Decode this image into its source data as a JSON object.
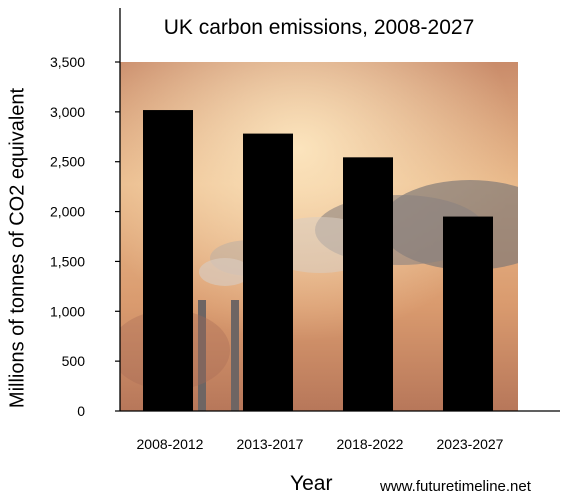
{
  "chart_data": {
    "type": "bar",
    "title": "UK carbon emissions, 2008-2027",
    "xlabel": "Year",
    "ylabel": "Millions of tonnes of CO2 equivalent",
    "categories": [
      "2008-2012",
      "2013-2017",
      "2018-2022",
      "2023-2027"
    ],
    "values": [
      3018,
      2782,
      2544,
      1950
    ],
    "ylim": [
      0,
      3500
    ],
    "yticks": [
      0,
      500,
      1000,
      1500,
      2000,
      2500,
      3000,
      3500
    ],
    "ytick_labels": [
      "0",
      "500",
      "1,000",
      "1,500",
      "2,000",
      "2,500",
      "3,000",
      "3,500"
    ],
    "bar_color": "#000000",
    "grid": false,
    "background": "photo of industrial chimney smoke against an orange sky"
  },
  "source": "www.futuretimeline.net"
}
